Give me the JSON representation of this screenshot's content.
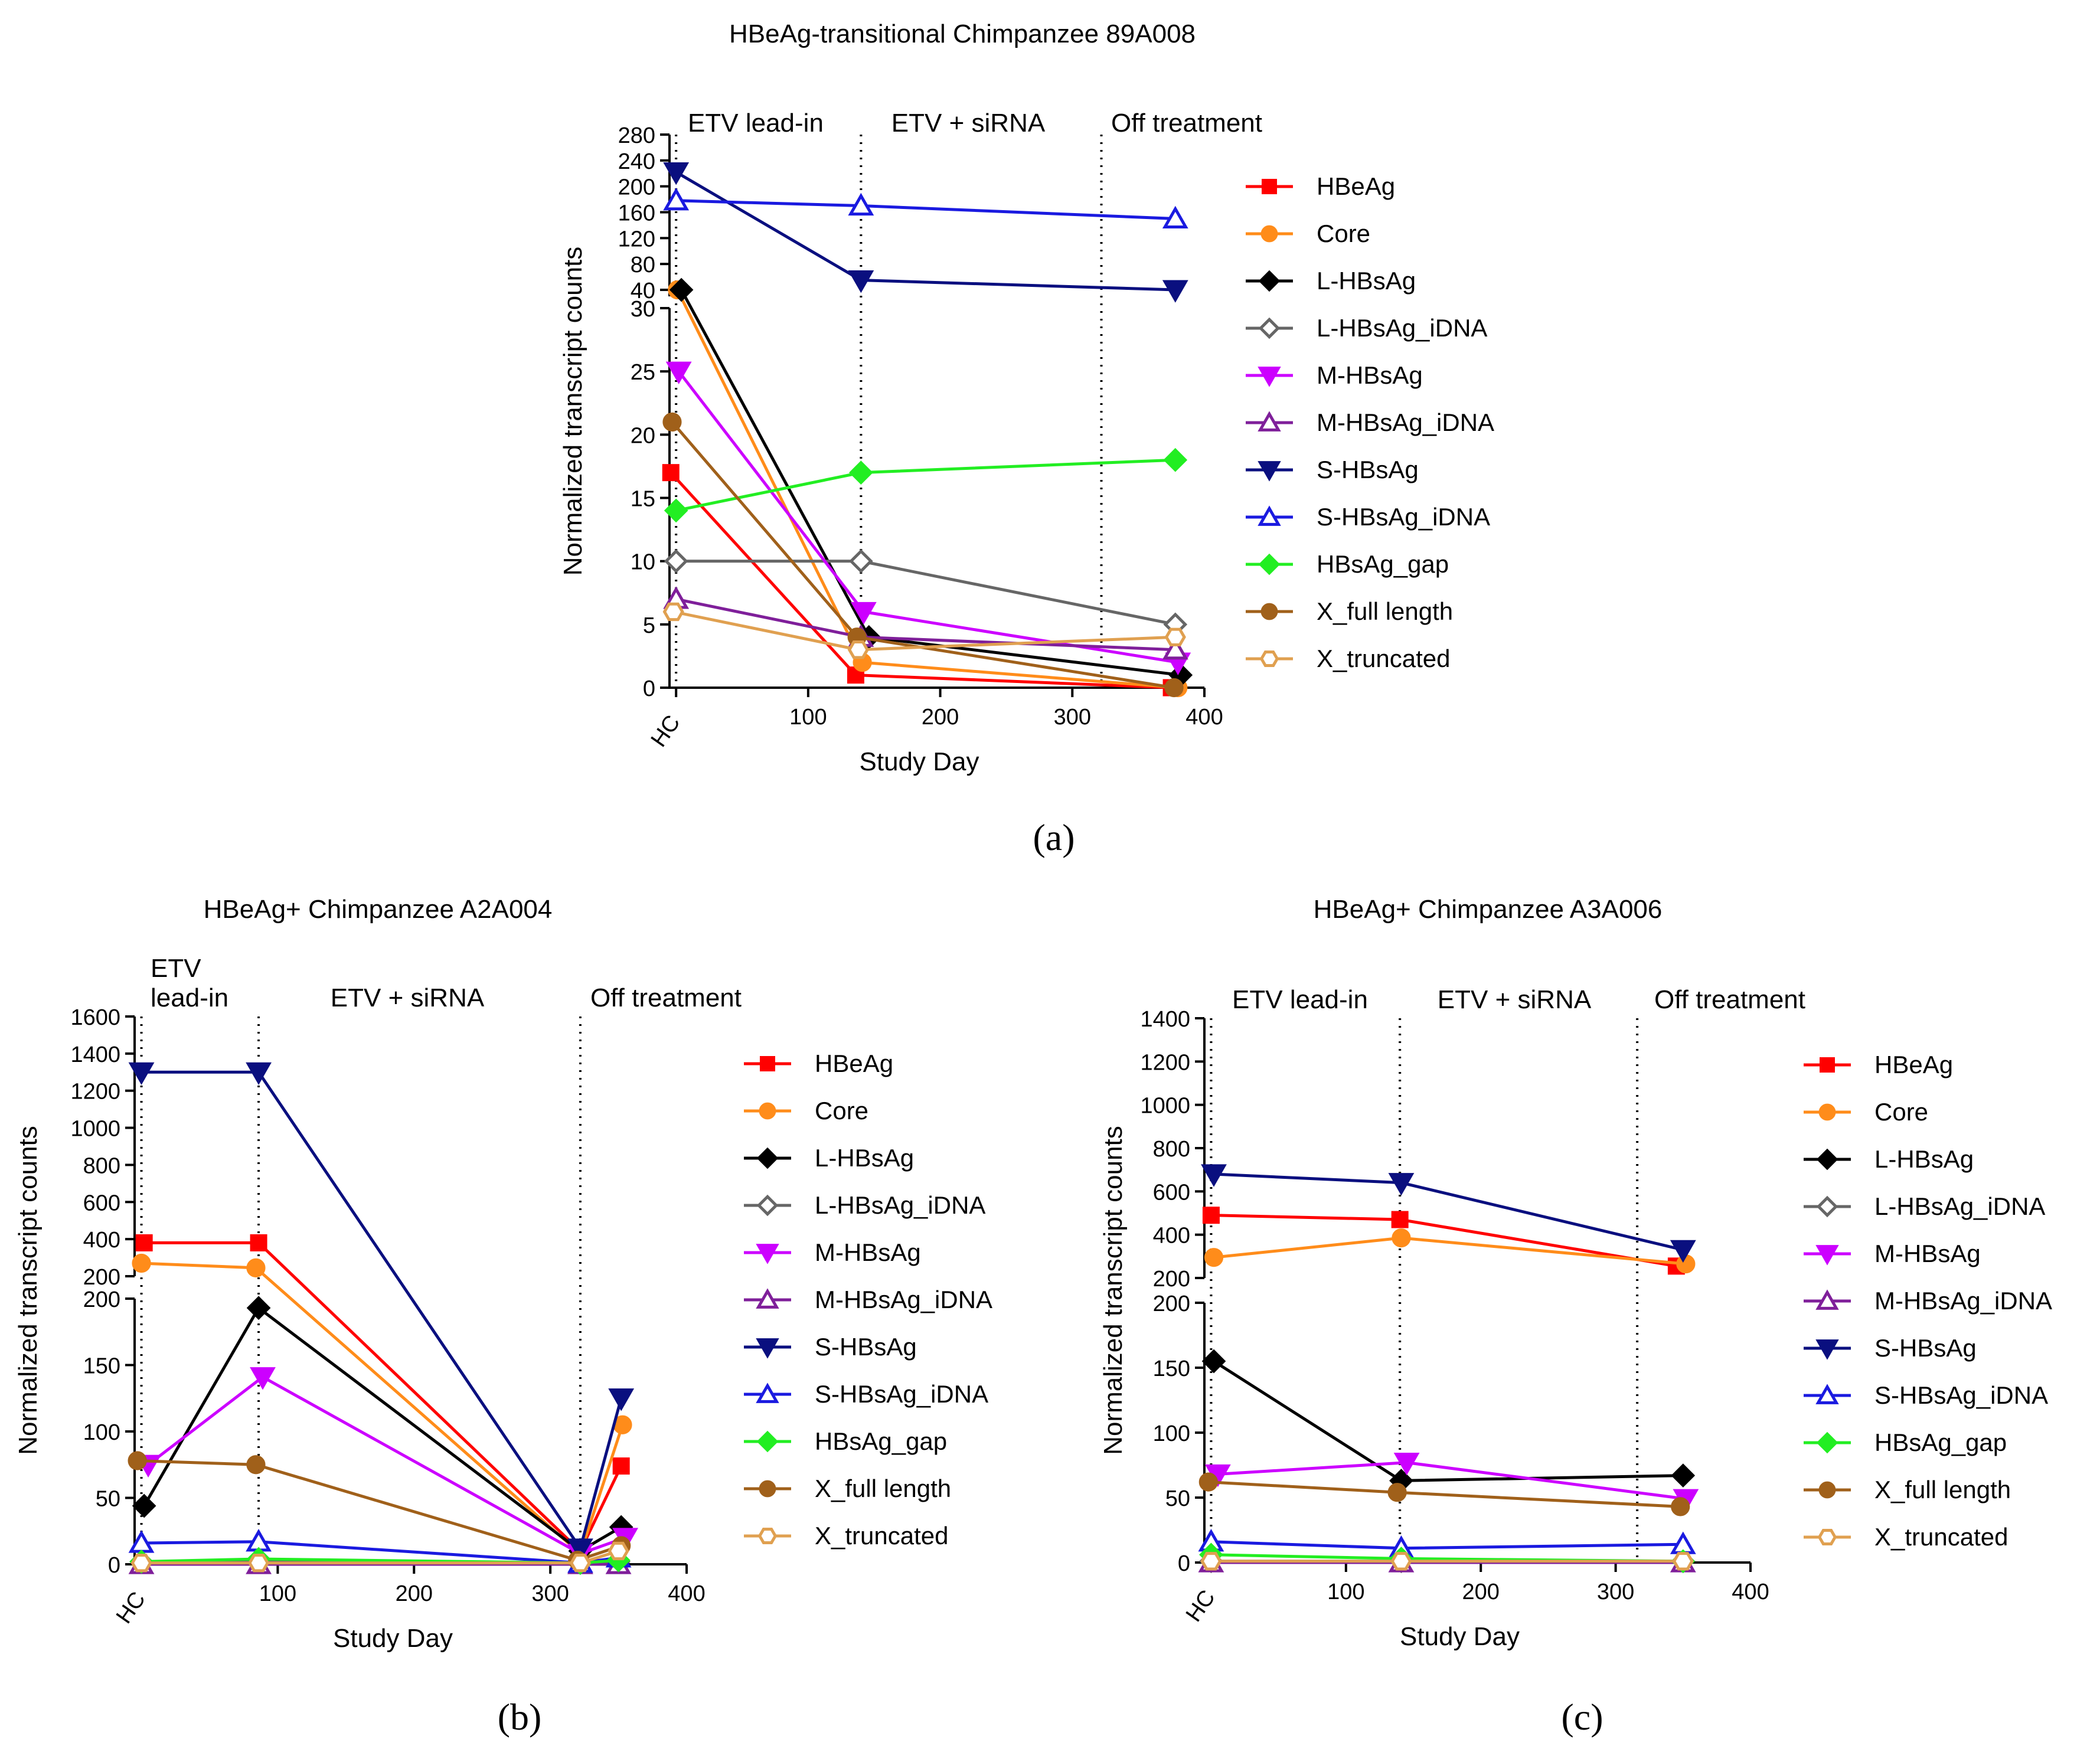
{
  "chart_data": [
    {
      "type": "line",
      "panel_label": "(a)",
      "title": "HBeAg-transitional Chimpanzee 89A008",
      "xlabel": "Study Day",
      "ylabel": "Normalized transcript counts",
      "x_ticks": [
        0,
        100,
        200,
        300,
        400
      ],
      "x_tick_labels": [
        "HC",
        "100",
        "200",
        "300",
        "400"
      ],
      "xlim": [
        -5,
        400
      ],
      "y_segments": [
        {
          "ylim": [
            0,
            30
          ],
          "ticks": [
            0,
            5,
            10,
            15,
            20,
            25,
            30
          ]
        },
        {
          "ylim": [
            30,
            280
          ],
          "ticks": [
            40,
            80,
            120,
            160,
            200,
            240,
            280
          ]
        }
      ],
      "phases": [
        {
          "label": "ETV lead-in",
          "start_day": 0
        },
        {
          "label": "ETV + siRNA",
          "start_day": 140
        },
        {
          "label": "Off treatment",
          "start_day": 322
        }
      ],
      "series": [
        {
          "name": "HBeAg",
          "color": "#ff0000",
          "marker": "square",
          "x": [
            -4,
            136,
            375
          ],
          "values": [
            17,
            1,
            0
          ]
        },
        {
          "name": "Core",
          "color": "#ff8c1a",
          "marker": "circle",
          "x": [
            1,
            141,
            380
          ],
          "values": [
            40,
            2,
            0
          ]
        },
        {
          "name": "L-HBsAg",
          "color": "#000000",
          "marker": "diamond",
          "x": [
            4,
            146,
            382
          ],
          "values": [
            40,
            4,
            1
          ]
        },
        {
          "name": "L-HBsAg_iDNA",
          "color": "#666666",
          "marker": "diamond-open",
          "x": [
            0,
            140,
            378
          ],
          "values": [
            10,
            10,
            5
          ]
        },
        {
          "name": "M-HBsAg",
          "color": "#cc00ff",
          "marker": "triangle-down",
          "x": [
            2,
            142,
            380
          ],
          "values": [
            25,
            6,
            2
          ]
        },
        {
          "name": "M-HBsAg_iDNA",
          "color": "#7f1f9a",
          "marker": "triangle-up-open",
          "x": [
            0,
            140,
            378
          ],
          "values": [
            7,
            4,
            3
          ]
        },
        {
          "name": "S-HBsAg",
          "color": "#0a0f7f",
          "marker": "triangle-down",
          "x": [
            0,
            140,
            378
          ],
          "values": [
            222,
            55,
            40
          ]
        },
        {
          "name": "S-HBsAg_iDNA",
          "color": "#1a1ae0",
          "marker": "triangle-up-open",
          "x": [
            0,
            140,
            378
          ],
          "values": [
            178,
            170,
            150
          ]
        },
        {
          "name": "HBsAg_gap",
          "color": "#22ee22",
          "marker": "diamond",
          "x": [
            0,
            140,
            378
          ],
          "values": [
            14,
            17,
            18
          ]
        },
        {
          "name": "X_full length",
          "color": "#a0601a",
          "marker": "circle",
          "x": [
            -3,
            137,
            377
          ],
          "values": [
            21,
            4,
            0
          ]
        },
        {
          "name": "X_truncated",
          "color": "#e0a050",
          "marker": "hexagon-open",
          "x": [
            -2,
            138,
            378
          ],
          "values": [
            6,
            3,
            4
          ]
        }
      ],
      "legend": "right"
    },
    {
      "type": "line",
      "panel_label": "(b)",
      "title": "HBeAg+ Chimpanzee A2A004",
      "xlabel": "Study Day",
      "ylabel": "Normalized transcript counts",
      "x_ticks": [
        0,
        100,
        200,
        300,
        400
      ],
      "x_tick_labels": [
        "HC",
        "100",
        "200",
        "300",
        "400"
      ],
      "xlim": [
        -5,
        400
      ],
      "y_segments": [
        {
          "ylim": [
            0,
            200
          ],
          "ticks": [
            0,
            50,
            100,
            150,
            200
          ]
        },
        {
          "ylim": [
            200,
            1600
          ],
          "ticks": [
            200,
            400,
            600,
            800,
            1000,
            1200,
            1400,
            1600
          ]
        }
      ],
      "phases": [
        {
          "label": "ETV\nlead-in",
          "start_day": 0
        },
        {
          "label": "ETV + siRNA",
          "start_day": 86
        },
        {
          "label": "Off treatment",
          "start_day": 322
        }
      ],
      "series": [
        {
          "name": "HBeAg",
          "color": "#ff0000",
          "marker": "square",
          "x": [
            2,
            86,
            322,
            352
          ],
          "values": [
            380,
            380,
            10,
            74
          ]
        },
        {
          "name": "Core",
          "color": "#ff8c1a",
          "marker": "circle",
          "x": [
            0,
            84,
            322,
            353
          ],
          "values": [
            270,
            245,
            8,
            105
          ]
        },
        {
          "name": "L-HBsAg",
          "color": "#000000",
          "marker": "diamond",
          "x": [
            2,
            86,
            322,
            352
          ],
          "values": [
            44,
            193,
            10,
            28
          ]
        },
        {
          "name": "L-HBsAg_iDNA",
          "color": "#666666",
          "marker": "diamond-open",
          "x": [
            0,
            86,
            322,
            350
          ],
          "values": [
            2,
            2,
            1,
            2
          ]
        },
        {
          "name": "M-HBsAg",
          "color": "#cc00ff",
          "marker": "triangle-down",
          "x": [
            5,
            89,
            322,
            355
          ],
          "values": [
            75,
            141,
            8,
            20
          ]
        },
        {
          "name": "M-HBsAg_iDNA",
          "color": "#7f1f9a",
          "marker": "triangle-up-open",
          "x": [
            0,
            86,
            322,
            350
          ],
          "values": [
            0,
            0,
            0,
            0
          ]
        },
        {
          "name": "S-HBsAg",
          "color": "#0a0f7f",
          "marker": "triangle-down",
          "x": [
            0,
            86,
            322,
            352
          ],
          "values": [
            1300,
            1300,
            12,
            125
          ]
        },
        {
          "name": "S-HBsAg_iDNA",
          "color": "#1a1ae0",
          "marker": "triangle-up-open",
          "x": [
            0,
            86,
            322,
            350
          ],
          "values": [
            16,
            17,
            1,
            5
          ]
        },
        {
          "name": "HBsAg_gap",
          "color": "#22ee22",
          "marker": "diamond",
          "x": [
            0,
            86,
            322,
            350
          ],
          "values": [
            2,
            4,
            1,
            3
          ]
        },
        {
          "name": "X_full length",
          "color": "#a0601a",
          "marker": "circle",
          "x": [
            -3,
            84,
            320,
            352
          ],
          "values": [
            78,
            75,
            3,
            14
          ]
        },
        {
          "name": "X_truncated",
          "color": "#e0a050",
          "marker": "hexagon-open",
          "x": [
            0,
            86,
            322,
            350
          ],
          "values": [
            1,
            1,
            1,
            10
          ]
        }
      ],
      "legend": "right"
    },
    {
      "type": "line",
      "panel_label": "(c)",
      "title": "HBeAg+ Chimpanzee A3A006",
      "xlabel": "Study Day",
      "ylabel": "Normalized transcript counts",
      "x_ticks": [
        0,
        100,
        200,
        300,
        400
      ],
      "x_tick_labels": [
        "HC",
        "100",
        "200",
        "300",
        "400"
      ],
      "xlim": [
        -5,
        400
      ],
      "y_segments": [
        {
          "ylim": [
            0,
            200
          ],
          "ticks": [
            0,
            50,
            100,
            150,
            200
          ]
        },
        {
          "ylim": [
            200,
            1400
          ],
          "ticks": [
            200,
            400,
            600,
            800,
            1000,
            1200,
            1400
          ]
        }
      ],
      "phases": [
        {
          "label": "ETV lead-in",
          "start_day": 0
        },
        {
          "label": "ETV + siRNA",
          "start_day": 140
        },
        {
          "label": "Off treatment",
          "start_day": 316
        }
      ],
      "series": [
        {
          "name": "HBeAg",
          "color": "#ff0000",
          "marker": "square",
          "x": [
            0,
            140,
            345
          ],
          "values": [
            490,
            470,
            255
          ]
        },
        {
          "name": "Core",
          "color": "#ff8c1a",
          "marker": "circle",
          "x": [
            2,
            141,
            352
          ],
          "values": [
            295,
            385,
            265
          ]
        },
        {
          "name": "L-HBsAg",
          "color": "#000000",
          "marker": "diamond",
          "x": [
            2,
            141,
            350
          ],
          "values": [
            155,
            63,
            67
          ]
        },
        {
          "name": "L-HBsAg_iDNA",
          "color": "#666666",
          "marker": "diamond-open",
          "x": [
            0,
            141,
            350
          ],
          "values": [
            1,
            1,
            1
          ]
        },
        {
          "name": "M-HBsAg",
          "color": "#cc00ff",
          "marker": "triangle-down",
          "x": [
            5,
            145,
            352
          ],
          "values": [
            68,
            77,
            49
          ]
        },
        {
          "name": "M-HBsAg_iDNA",
          "color": "#7f1f9a",
          "marker": "triangle-up-open",
          "x": [
            0,
            141,
            350
          ],
          "values": [
            0,
            0,
            0
          ]
        },
        {
          "name": "S-HBsAg",
          "color": "#0a0f7f",
          "marker": "triangle-down",
          "x": [
            2,
            141,
            350
          ],
          "values": [
            680,
            640,
            330
          ]
        },
        {
          "name": "S-HBsAg_iDNA",
          "color": "#1a1ae0",
          "marker": "triangle-up-open",
          "x": [
            0,
            141,
            350
          ],
          "values": [
            16,
            11,
            14
          ]
        },
        {
          "name": "HBsAg_gap",
          "color": "#22ee22",
          "marker": "diamond",
          "x": [
            0,
            141,
            350
          ],
          "values": [
            6,
            3,
            1
          ]
        },
        {
          "name": "X_full length",
          "color": "#a0601a",
          "marker": "circle",
          "x": [
            -2,
            138,
            348
          ],
          "values": [
            62,
            54,
            43
          ]
        },
        {
          "name": "X_truncated",
          "color": "#e0a050",
          "marker": "hexagon-open",
          "x": [
            0,
            141,
            350
          ],
          "values": [
            1,
            1,
            1
          ]
        }
      ],
      "legend": "right"
    }
  ]
}
